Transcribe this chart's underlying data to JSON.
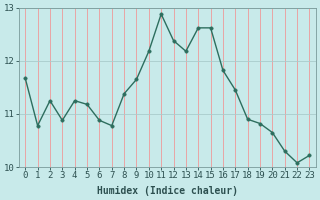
{
  "x": [
    0,
    1,
    2,
    3,
    4,
    5,
    6,
    7,
    8,
    9,
    10,
    11,
    12,
    13,
    14,
    15,
    16,
    17,
    18,
    19,
    20,
    21,
    22,
    23
  ],
  "y": [
    11.67,
    10.78,
    11.25,
    10.88,
    11.25,
    11.18,
    10.88,
    10.78,
    11.38,
    11.65,
    12.18,
    12.88,
    12.38,
    12.18,
    12.62,
    12.62,
    11.82,
    11.45,
    10.9,
    10.82,
    10.65,
    10.3,
    10.08,
    10.22
  ],
  "line_color": "#2d6e5e",
  "marker_color": "#2d6e5e",
  "bg_color": "#c8eaea",
  "plot_bg_color": "#c8eaea",
  "vgrid_color": "#ee9999",
  "hgrid_color": "#aacccc",
  "xlabel": "Humidex (Indice chaleur)",
  "ylim": [
    10.0,
    13.0
  ],
  "xlim": [
    -0.5,
    23.5
  ],
  "yticks": [
    10,
    11,
    12,
    13
  ],
  "xticks": [
    0,
    1,
    2,
    3,
    4,
    5,
    6,
    7,
    8,
    9,
    10,
    11,
    12,
    13,
    14,
    15,
    16,
    17,
    18,
    19,
    20,
    21,
    22,
    23
  ],
  "xlabel_fontsize": 7,
  "tick_fontsize": 6.5,
  "marker_size": 2.5,
  "line_width": 1.0,
  "left_margin_color": "#b0c8c8"
}
